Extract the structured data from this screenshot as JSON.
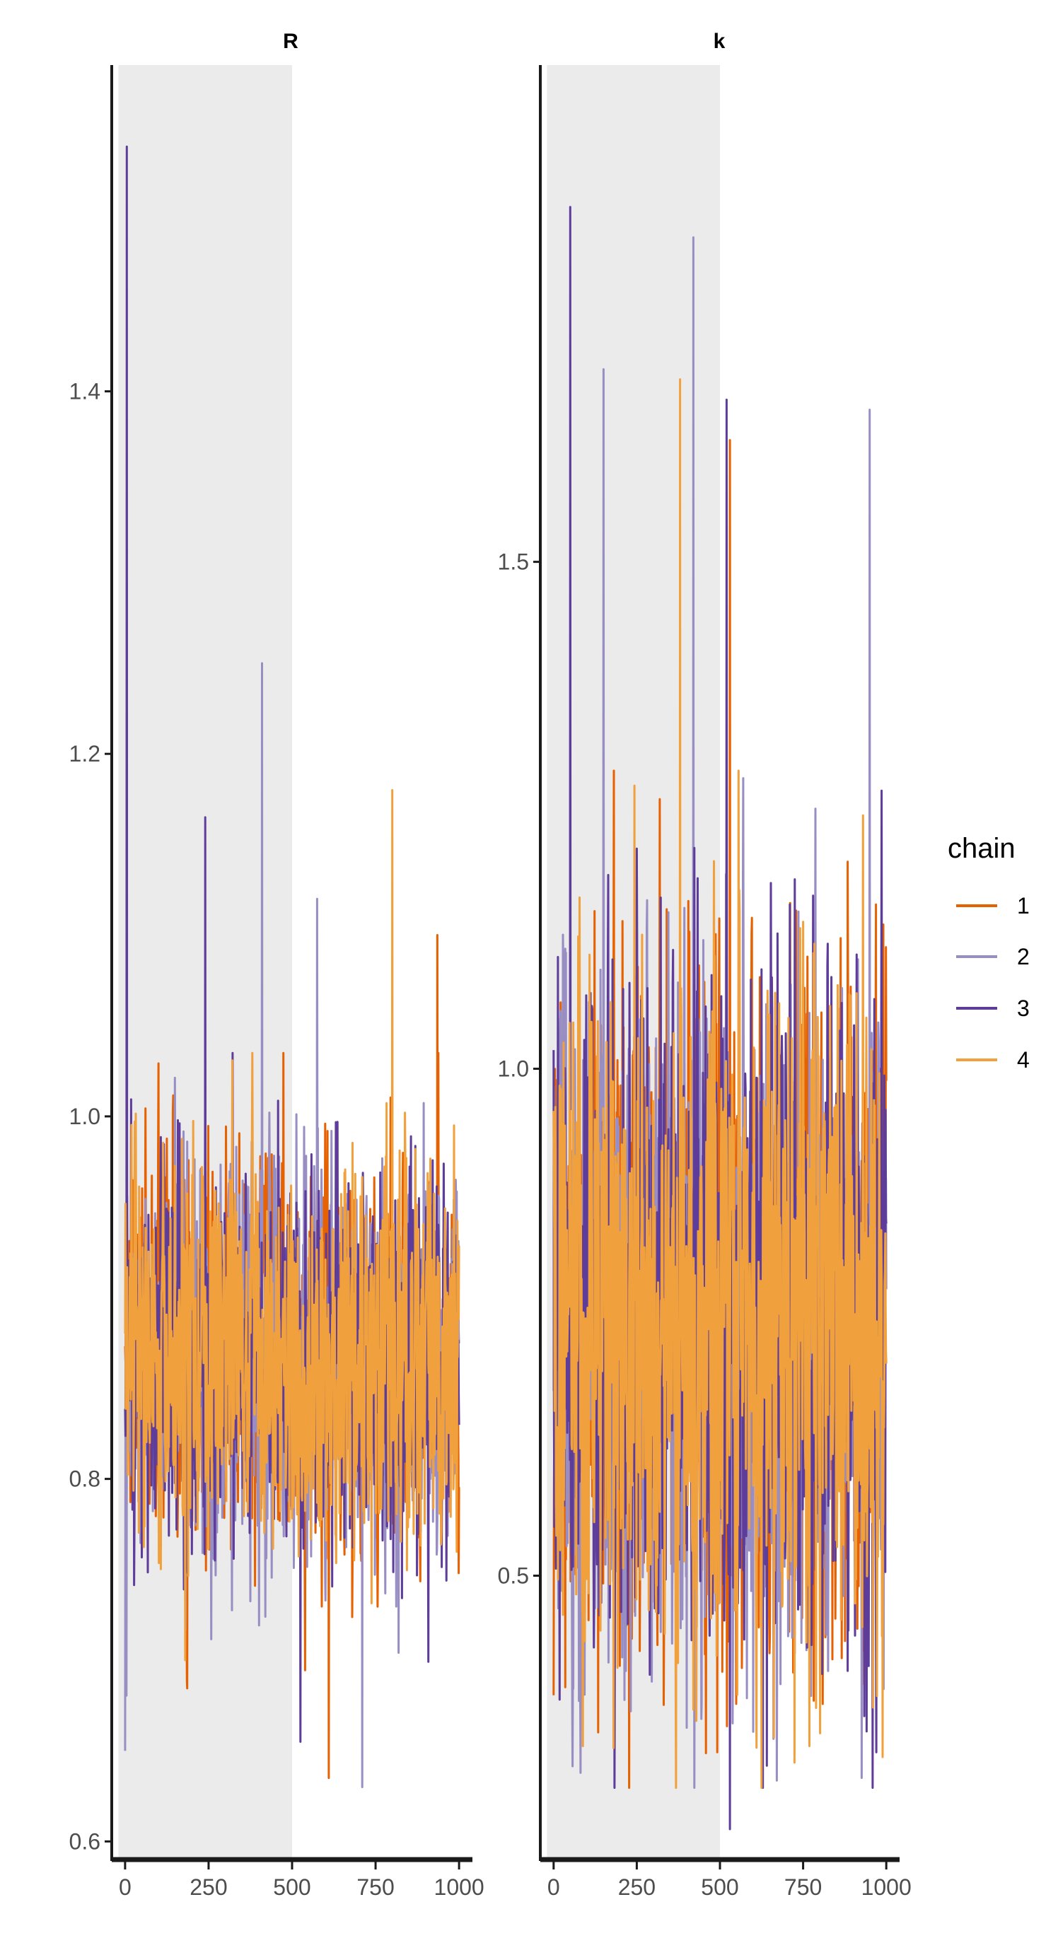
{
  "chart_data": [
    {
      "type": "line",
      "panel_title": "R",
      "xlim": [
        -40,
        1040
      ],
      "ylim": [
        0.59,
        1.58
      ],
      "x_ticks": [
        0,
        250,
        500,
        750,
        1000
      ],
      "y_ticks": [
        0.6,
        0.8,
        1.0,
        1.2,
        1.4
      ],
      "x_tick_labels": [
        "0",
        "250",
        "500",
        "750",
        "1000"
      ],
      "y_tick_labels": [
        "0.6",
        "0.8",
        "1.0",
        "1.2",
        "1.4"
      ],
      "warmup_region": [
        0,
        500
      ],
      "iterations": 1000,
      "center": 0.865,
      "spread": 0.05,
      "series": [
        {
          "name": "1",
          "color": "#e66101",
          "peaks": [
            [
              240,
              1.03
            ],
            [
              610,
              0.635
            ],
            [
              935,
              1.1
            ]
          ]
        },
        {
          "name": "2",
          "color": "#998ec3",
          "peaks": [
            [
              0,
              0.65
            ],
            [
              410,
              1.25
            ],
            [
              575,
              1.12
            ],
            [
              710,
              0.63
            ]
          ]
        },
        {
          "name": "3",
          "color": "#5e3c99",
          "peaks": [
            [
              5,
              1.535
            ],
            [
              240,
              1.165
            ],
            [
              525,
              0.655
            ]
          ]
        },
        {
          "name": "4",
          "color": "#f0a03c",
          "peaks": [
            [
              800,
              1.18
            ],
            [
              180,
              0.7
            ]
          ]
        }
      ]
    },
    {
      "type": "line",
      "panel_title": "k",
      "xlim": [
        -40,
        1040
      ],
      "ylim": [
        0.22,
        1.99
      ],
      "x_ticks": [
        0,
        250,
        500,
        750,
        1000
      ],
      "y_ticks": [
        0.5,
        1.0,
        1.5
      ],
      "x_tick_labels": [
        "0",
        "250",
        "500",
        "750",
        "1000"
      ],
      "y_tick_labels": [
        "0.5",
        "1.0",
        "1.5"
      ],
      "warmup_region": [
        0,
        500
      ],
      "iterations": 1000,
      "center": 0.75,
      "spread": 0.16,
      "series": [
        {
          "name": "1",
          "color": "#e66101",
          "peaks": [
            [
              530,
              1.62
            ],
            [
              35,
              0.39
            ]
          ]
        },
        {
          "name": "2",
          "color": "#998ec3",
          "peaks": [
            [
              420,
              1.82
            ],
            [
              150,
              1.69
            ],
            [
              950,
              1.65
            ],
            [
              400,
              0.35
            ]
          ]
        },
        {
          "name": "3",
          "color": "#5e3c99",
          "peaks": [
            [
              50,
              1.85
            ],
            [
              520,
              1.66
            ],
            [
              530,
              0.25
            ]
          ]
        },
        {
          "name": "4",
          "color": "#f0a03c",
          "peaks": [
            [
              380,
              1.68
            ],
            [
              180,
              0.33
            ],
            [
              960,
              0.37
            ]
          ]
        }
      ]
    }
  ],
  "legend": {
    "title": "chain",
    "entries": [
      {
        "label": "1",
        "color": "#e66101"
      },
      {
        "label": "2",
        "color": "#998ec3"
      },
      {
        "label": "3",
        "color": "#5e3c99"
      },
      {
        "label": "4",
        "color": "#f0a03c"
      }
    ]
  },
  "colors": {
    "warmup_shade": "#ebebeb",
    "axis": "#1a1a1a",
    "tick_text": "#4d4d4d"
  }
}
